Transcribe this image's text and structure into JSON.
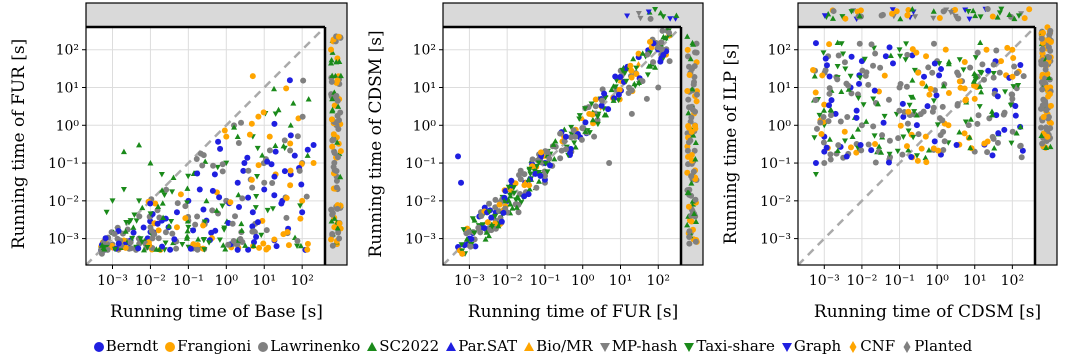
{
  "chart_data": [
    {
      "type": "scatter",
      "xlabel": "Running time of Base [s]",
      "ylabel": "Running time of FUR [s]",
      "scale": "log",
      "xlim": [
        0.0002,
        400
      ],
      "ylim": [
        0.0002,
        400
      ],
      "timeout_band": "timeout",
      "xticks": [
        "10^-3",
        "10^-2",
        "10^-1",
        "10^0",
        "10^1",
        "10^2"
      ],
      "yticks": [
        "10^-3",
        "10^-2",
        "10^-1",
        "10^0",
        "10^1",
        "10^2"
      ],
      "points": [
        {
          "series": "Berndt",
          "x": [
            0.0005,
            0.0006,
            0.0008,
            0.001,
            0.0015,
            0.002,
            0.003,
            0.005,
            0.01,
            0.02,
            0.03,
            0.05,
            0.1,
            0.2,
            0.3,
            0.5,
            1,
            2,
            3,
            5,
            10,
            20,
            30,
            50,
            100,
            200
          ],
          "y": [
            0.0005,
            0.0005,
            0.0006,
            0.0006,
            0.0007,
            0.0008,
            0.0009,
            0.001,
            0.0015,
            0.003,
            0.002,
            0.005,
            0.01,
            0.02,
            0.003,
            0.05,
            0.01,
            0.03,
            0.1,
            0.005,
            0.02,
            0.2,
            0.01,
            0.05,
            0.005,
            0.3
          ]
        },
        {
          "series": "Frangioni",
          "x": [
            0.05,
            1,
            5,
            20,
            100,
            200
          ],
          "y": [
            0.002,
            0.5,
            20,
            0.05,
            0.01,
            0.1
          ]
        },
        {
          "series": "Lawrinenko",
          "x": [
            0.0005,
            0.001,
            0.005,
            0.01,
            0.1,
            1,
            10,
            100
          ],
          "y": [
            0.0005,
            0.0007,
            0.001,
            0.002,
            0.003,
            0.01,
            0.03,
            0.1
          ]
        },
        {
          "series": "SC2022",
          "x": [
            0.002,
            0.005,
            0.01,
            0.3,
            2,
            50
          ],
          "y": [
            0.2,
            0.3,
            0.1,
            0.01,
            0.5,
            1
          ]
        },
        {
          "series": "Taxi-share",
          "x": [
            0.0007,
            0.001,
            0.002,
            0.003,
            0.005,
            0.02,
            0.1,
            1,
            5,
            20
          ],
          "y": [
            0.005,
            0.01,
            0.02,
            0.003,
            0.01,
            0.05,
            0.002,
            0.1,
            0.5,
            2
          ]
        }
      ]
    },
    {
      "type": "scatter",
      "xlabel": "Running time of FUR [s]",
      "ylabel": "Running time of CDSM [s]",
      "scale": "log",
      "xlim": [
        0.0002,
        400
      ],
      "ylim": [
        0.0002,
        400
      ],
      "timeout_band": "timeout",
      "xticks": [
        "10^-3",
        "10^-2",
        "10^-1",
        "10^0",
        "10^1",
        "10^2"
      ],
      "yticks": [
        "10^-3",
        "10^-2",
        "10^-1",
        "10^0",
        "10^1",
        "10^2"
      ],
      "points": [
        {
          "series": "Berndt",
          "x": [
            0.0005,
            0.001,
            0.002,
            0.005,
            0.01,
            0.03,
            0.1,
            0.0005,
            0.0006
          ],
          "y": [
            0.0006,
            0.001,
            0.002,
            0.005,
            0.01,
            0.03,
            0.1,
            0.15,
            0.03
          ]
        },
        {
          "series": "Lawrinenko",
          "x": [
            0.001,
            0.005,
            0.02,
            0.1,
            0.5,
            2,
            5,
            20,
            50,
            100,
            200
          ],
          "y": [
            0.0008,
            0.003,
            0.005,
            0.03,
            0.2,
            0.5,
            0.1,
            2,
            5,
            10,
            50
          ]
        },
        {
          "series": "Bio/MR",
          "x": [
            0.01,
            0.1,
            1,
            10,
            100
          ],
          "y": [
            0.02,
            0.15,
            1.5,
            15,
            150
          ]
        },
        {
          "series": "CNF",
          "x": [
            0.03,
            0.3,
            3,
            30
          ],
          "y": [
            0.03,
            0.5,
            3,
            40
          ]
        }
      ]
    },
    {
      "type": "scatter",
      "xlabel": "Running time of CDSM [s]",
      "ylabel": "Running time of ILP [s]",
      "scale": "log",
      "xlim": [
        0.0002,
        400
      ],
      "ylim": [
        0.0002,
        400
      ],
      "timeout_band": "timeout",
      "xticks": [
        "10^-3",
        "10^-2",
        "10^-1",
        "10^0",
        "10^1",
        "10^2"
      ],
      "yticks": [
        "10^-3",
        "10^-2",
        "10^-1",
        "10^0",
        "10^1",
        "10^2"
      ],
      "points": [
        {
          "series": "Berndt",
          "x": [
            0.0006,
            0.001,
            0.002,
            0.005,
            0.01,
            0.0006,
            0.001
          ],
          "y": [
            0.1,
            0.5,
            2,
            10,
            50,
            150,
            0.2
          ]
        },
        {
          "series": "Frangioni",
          "x": [
            0.5,
            2,
            10,
            50,
            100
          ],
          "y": [
            0.5,
            1,
            5,
            50,
            100
          ]
        },
        {
          "series": "Lawrinenko",
          "x": [
            0.001,
            0.01,
            0.1,
            1,
            10,
            100,
            200
          ],
          "y": [
            0.1,
            1,
            10,
            50,
            0.2,
            5,
            20
          ]
        },
        {
          "series": "Taxi-share",
          "x": [
            0.0006,
            0.001,
            0.005,
            0.02,
            0.1
          ],
          "y": [
            0.05,
            1,
            20,
            5,
            100
          ]
        }
      ]
    }
  ],
  "legend": [
    {
      "label": "Berndt",
      "color": "#1f1fe0",
      "marker": "circle"
    },
    {
      "label": "Frangioni",
      "color": "#ffa500",
      "marker": "circle"
    },
    {
      "label": "Lawrinenko",
      "color": "#808080",
      "marker": "circle"
    },
    {
      "label": "SC2022",
      "color": "#1a8a1a",
      "marker": "triangle-up"
    },
    {
      "label": "Par.SAT",
      "color": "#1f1fe0",
      "marker": "triangle-up"
    },
    {
      "label": "Bio/MR",
      "color": "#ffa500",
      "marker": "triangle-up"
    },
    {
      "label": "MP-hash",
      "color": "#808080",
      "marker": "triangle-down"
    },
    {
      "label": "Taxi-share",
      "color": "#1a8a1a",
      "marker": "triangle-down"
    },
    {
      "label": "Graph",
      "color": "#1f1fe0",
      "marker": "triangle-down"
    },
    {
      "label": "CNF",
      "color": "#ffa500",
      "marker": "diamond"
    },
    {
      "label": "Planted",
      "color": "#808080",
      "marker": "diamond"
    }
  ]
}
